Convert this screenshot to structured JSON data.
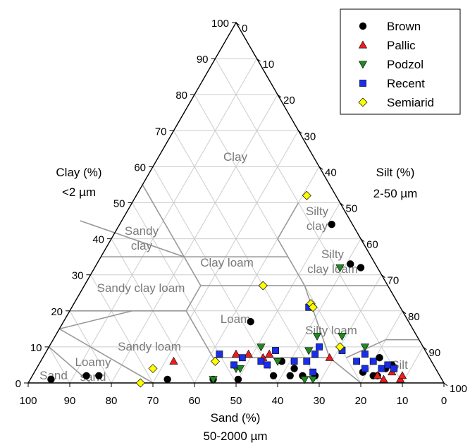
{
  "chart_data": {
    "type": "scatter",
    "subtype": "ternary",
    "axes": {
      "clay": {
        "label": "Clay (%)",
        "sublabel": "<2 µm",
        "ticks": [
          0,
          10,
          20,
          30,
          40,
          50,
          60,
          70,
          80,
          90,
          100
        ]
      },
      "silt": {
        "label": "Silt (%)",
        "sublabel": "2-50 µm",
        "ticks": [
          0,
          10,
          20,
          30,
          40,
          50,
          60,
          70,
          80,
          90,
          100
        ]
      },
      "sand": {
        "label": "Sand (%)",
        "sublabel": "50-2000 µm",
        "ticks": [
          100,
          90,
          80,
          70,
          60,
          50,
          40,
          30,
          20,
          10,
          0
        ]
      }
    },
    "grid": true,
    "legend_position": "top-right",
    "texture_classes": [
      "Clay",
      "Silty clay",
      "Sandy clay",
      "Clay loam",
      "Silty clay loam",
      "Sandy clay loam",
      "Loam",
      "Silty loam",
      "Sandy loam",
      "Loamy sand",
      "Sand",
      "Silt"
    ],
    "texture_class_labels": [
      {
        "name": "Clay",
        "lines": [
          "Clay"
        ]
      },
      {
        "name": "Silty clay",
        "lines": [
          "Silty",
          "clay"
        ]
      },
      {
        "name": "Sandy clay",
        "lines": [
          "Sandy",
          "clay"
        ]
      },
      {
        "name": "Clay loam",
        "lines": [
          "Clay loam"
        ]
      },
      {
        "name": "Silty clay loam",
        "lines": [
          "Silty",
          "clay loam"
        ]
      },
      {
        "name": "Sandy clay loam",
        "lines": [
          "Sandy clay loam"
        ]
      },
      {
        "name": "Loam",
        "lines": [
          "Loam"
        ]
      },
      {
        "name": "Silty loam",
        "lines": [
          "Silty loam"
        ]
      },
      {
        "name": "Sandy loam",
        "lines": [
          "Sandy loam"
        ]
      },
      {
        "name": "Loamy sand",
        "lines": [
          "Loamy",
          "sand"
        ]
      },
      {
        "name": "Sand",
        "lines": [
          "Sand"
        ]
      },
      {
        "name": "Silt",
        "lines": [
          "Silt"
        ]
      }
    ],
    "series": [
      {
        "name": "Brown",
        "marker": "circle",
        "color": "#000000",
        "points": [
          {
            "sand": 94,
            "clay": 1
          },
          {
            "sand": 85,
            "clay": 2
          },
          {
            "sand": 82,
            "clay": 2
          },
          {
            "sand": 66,
            "clay": 1
          },
          {
            "sand": 55,
            "clay": 1
          },
          {
            "sand": 49,
            "clay": 1
          },
          {
            "sand": 40,
            "clay": 2
          },
          {
            "sand": 36,
            "clay": 2
          },
          {
            "sand": 34,
            "clay": 4
          },
          {
            "sand": 33,
            "clay": 2
          },
          {
            "sand": 30,
            "clay": 2
          },
          {
            "sand": 36,
            "clay": 6
          },
          {
            "sand": 38,
            "clay": 17
          },
          {
            "sand": 18,
            "clay": 3
          },
          {
            "sand": 15,
            "clay": 2
          },
          {
            "sand": 16,
            "clay": 2
          },
          {
            "sand": 12,
            "clay": 4
          },
          {
            "sand": 12,
            "clay": 7
          },
          {
            "sand": 10,
            "clay": 5
          },
          {
            "sand": 10,
            "clay": 4
          },
          {
            "sand": 5,
            "clay": 44
          },
          {
            "sand": 6,
            "clay": 33
          },
          {
            "sand": 4,
            "clay": 32
          }
        ]
      },
      {
        "name": "Pallic",
        "marker": "triangle-up",
        "color": "#ee1c1c",
        "points": [
          {
            "sand": 62,
            "clay": 6
          },
          {
            "sand": 46,
            "clay": 8
          },
          {
            "sand": 43,
            "clay": 8
          },
          {
            "sand": 40,
            "clay": 7
          },
          {
            "sand": 38,
            "clay": 8
          },
          {
            "sand": 24,
            "clay": 7
          },
          {
            "sand": 15,
            "clay": 2
          },
          {
            "sand": 14,
            "clay": 1
          },
          {
            "sand": 11,
            "clay": 3
          },
          {
            "sand": 10,
            "clay": 1
          },
          {
            "sand": 9,
            "clay": 2
          }
        ]
      },
      {
        "name": "Podzol",
        "marker": "triangle-down",
        "color": "#1e8a1e",
        "points": [
          {
            "sand": 55,
            "clay": 1
          },
          {
            "sand": 48,
            "clay": 4
          },
          {
            "sand": 47,
            "clay": 4
          },
          {
            "sand": 39,
            "clay": 10
          },
          {
            "sand": 37,
            "clay": 6
          },
          {
            "sand": 33,
            "clay": 1
          },
          {
            "sand": 31,
            "clay": 1
          },
          {
            "sand": 28,
            "clay": 9
          },
          {
            "sand": 24,
            "clay": 13
          },
          {
            "sand": 18,
            "clay": 13
          },
          {
            "sand": 14,
            "clay": 10
          },
          {
            "sand": 9,
            "clay": 32
          }
        ]
      },
      {
        "name": "Recent",
        "marker": "square",
        "color": "#1a2ee8",
        "points": [
          {
            "sand": 50,
            "clay": 8
          },
          {
            "sand": 48,
            "clay": 5
          },
          {
            "sand": 45,
            "clay": 7
          },
          {
            "sand": 41,
            "clay": 6
          },
          {
            "sand": 40,
            "clay": 5
          },
          {
            "sand": 36,
            "clay": 9
          },
          {
            "sand": 33,
            "clay": 6
          },
          {
            "sand": 30,
            "clay": 3
          },
          {
            "sand": 30,
            "clay": 6
          },
          {
            "sand": 27,
            "clay": 8
          },
          {
            "sand": 25,
            "clay": 10
          },
          {
            "sand": 20,
            "clay": 9
          },
          {
            "sand": 18,
            "clay": 6
          },
          {
            "sand": 17,
            "clay": 4
          },
          {
            "sand": 15,
            "clay": 8
          },
          {
            "sand": 14,
            "clay": 6
          },
          {
            "sand": 13,
            "clay": 4
          },
          {
            "sand": 11,
            "clay": 5
          },
          {
            "sand": 10,
            "clay": 4
          },
          {
            "sand": 22,
            "clay": 21
          }
        ]
      },
      {
        "name": "Semiarid",
        "marker": "diamond",
        "color": "#ffff00",
        "points": [
          {
            "sand": 73,
            "clay": 0
          },
          {
            "sand": 68,
            "clay": 4
          },
          {
            "sand": 52,
            "clay": 6
          },
          {
            "sand": 20,
            "clay": 10
          },
          {
            "sand": 21,
            "clay": 22
          },
          {
            "sand": 21,
            "clay": 21
          },
          {
            "sand": 30,
            "clay": 27
          },
          {
            "sand": 7,
            "clay": 52
          }
        ]
      }
    ]
  },
  "legend": {
    "items": [
      {
        "label": "Brown",
        "marker": "circle",
        "color": "#000000"
      },
      {
        "label": "Pallic",
        "marker": "triangle-up",
        "color": "#ee1c1c"
      },
      {
        "label": "Podzol",
        "marker": "triangle-down",
        "color": "#1e8a1e"
      },
      {
        "label": "Recent",
        "marker": "square",
        "color": "#1a2ee8"
      },
      {
        "label": "Semiarid",
        "marker": "diamond",
        "color": "#ffff00"
      }
    ]
  }
}
